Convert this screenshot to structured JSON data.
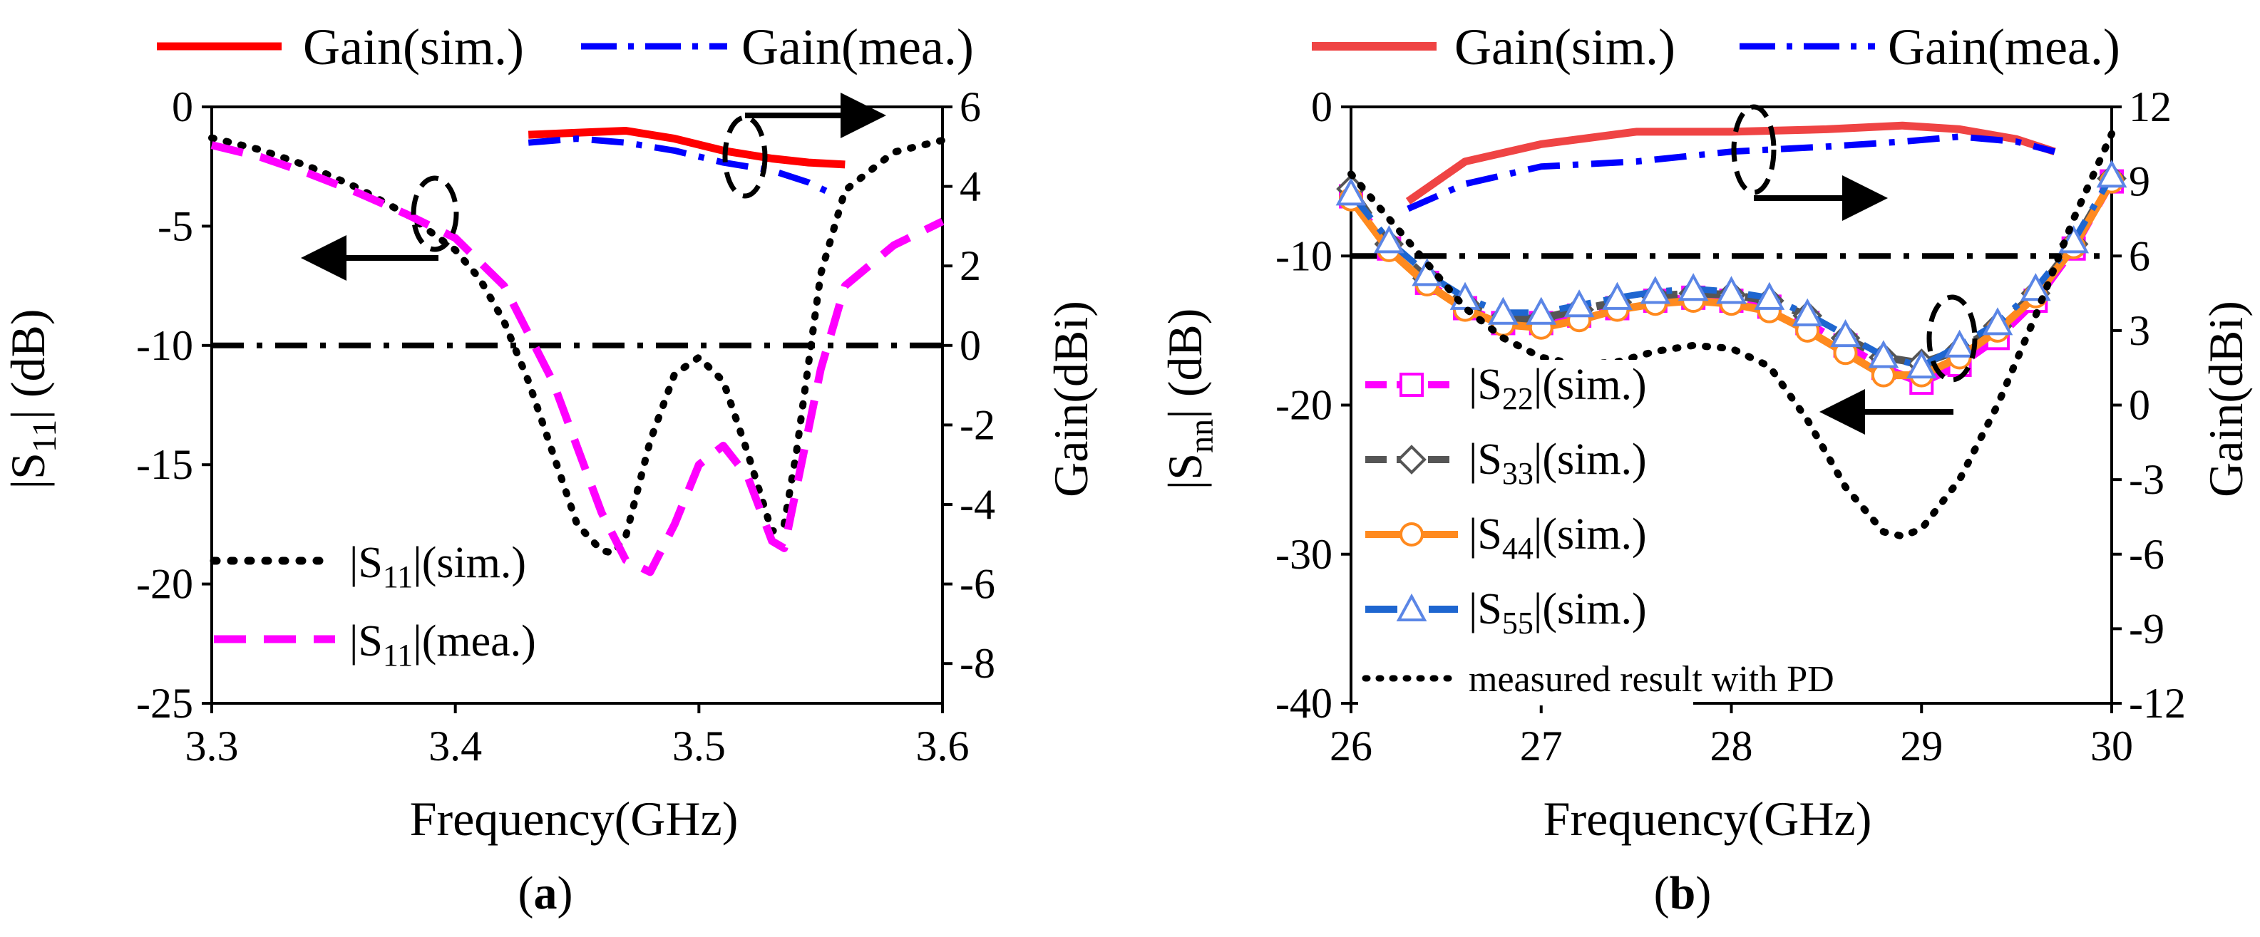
{
  "chart_data": [
    {
      "panel": "a",
      "type": "line",
      "panel_label": "(a)",
      "xlabel": "Frequency(GHz)",
      "ylabel_left": "|S11| (dB)",
      "ylabel_right": "Gain(dBi)",
      "xlim": [
        3.3,
        3.6
      ],
      "ylim_left": [
        -25,
        0
      ],
      "ylim_right": [
        -9,
        6
      ],
      "xticks": [
        "3.3",
        "3.4",
        "3.5",
        "3.6"
      ],
      "yticks_left": [
        "0",
        "-5",
        "-10",
        "-15",
        "-20",
        "-25"
      ],
      "yticks_right": [
        "6",
        "4",
        "2",
        "0",
        "-2",
        "-4",
        "-6",
        "-8"
      ],
      "reference_line": -10,
      "series": [
        {
          "name": "|S11|(sim.)",
          "label_main": "|S",
          "label_sub": "11",
          "label_tail": "|(sim.)",
          "axis": "left",
          "color": "#000000",
          "style": "dotted",
          "x": [
            3.3,
            3.32,
            3.34,
            3.36,
            3.38,
            3.4,
            3.41,
            3.42,
            3.43,
            3.44,
            3.45,
            3.46,
            3.465,
            3.47,
            3.48,
            3.49,
            3.5,
            3.51,
            3.52,
            3.53,
            3.535,
            3.54,
            3.55,
            3.56,
            3.58,
            3.6
          ],
          "y": [
            -1.3,
            -1.8,
            -2.5,
            -3.4,
            -4.5,
            -6.0,
            -7.2,
            -9.0,
            -11.5,
            -14.5,
            -17.5,
            -18.6,
            -18.7,
            -18.0,
            -14.0,
            -11.2,
            -10.5,
            -11.5,
            -14.5,
            -17.8,
            -17.5,
            -14.5,
            -7.0,
            -3.5,
            -1.9,
            -1.4
          ]
        },
        {
          "name": "|S11|(mea.)",
          "label_main": "|S",
          "label_sub": "11",
          "label_tail": "|(mea.)",
          "axis": "left",
          "color": "#ff00ff",
          "style": "dashed",
          "x": [
            3.3,
            3.32,
            3.34,
            3.36,
            3.38,
            3.4,
            3.42,
            3.44,
            3.46,
            3.47,
            3.48,
            3.49,
            3.5,
            3.51,
            3.52,
            3.53,
            3.535,
            3.54,
            3.55,
            3.56,
            3.58,
            3.6
          ],
          "y": [
            -1.6,
            -2.1,
            -2.8,
            -3.6,
            -4.5,
            -5.5,
            -7.5,
            -11.5,
            -17.0,
            -19.0,
            -19.5,
            -17.5,
            -15.0,
            -14.2,
            -15.5,
            -18.2,
            -18.5,
            -16.0,
            -11.0,
            -7.5,
            -5.8,
            -4.8
          ]
        },
        {
          "name": "Gain(sim.)",
          "axis": "right",
          "color": "#ff0000",
          "style": "solid",
          "x": [
            3.43,
            3.45,
            3.47,
            3.49,
            3.51,
            3.53,
            3.545,
            3.56
          ],
          "y": [
            5.3,
            5.35,
            5.4,
            5.2,
            4.9,
            4.7,
            4.6,
            4.55
          ]
        },
        {
          "name": "Gain(mea.)",
          "axis": "right",
          "color": "#0000ff",
          "style": "dashdot",
          "x": [
            3.43,
            3.45,
            3.47,
            3.49,
            3.51,
            3.53,
            3.545,
            3.555
          ],
          "y": [
            5.1,
            5.2,
            5.1,
            4.9,
            4.6,
            4.4,
            4.1,
            3.8
          ]
        }
      ]
    },
    {
      "panel": "b",
      "type": "line",
      "panel_label": "(b)",
      "xlabel": "Frequency(GHz)",
      "ylabel_left": "|Snn| (dB)",
      "ylabel_right": "Gain(dBi)",
      "xlim": [
        26,
        30
      ],
      "ylim_left": [
        -40,
        0
      ],
      "ylim_right": [
        -12,
        12
      ],
      "xticks": [
        "26",
        "27",
        "28",
        "29",
        "30"
      ],
      "yticks_left": [
        "0",
        "-10",
        "-20",
        "-30",
        "-40"
      ],
      "yticks_right": [
        "12",
        "9",
        "6",
        "3",
        "0",
        "-3",
        "-6",
        "-9",
        "-12"
      ],
      "reference_line": -10,
      "series": [
        {
          "name": "Gain(sim.)",
          "axis": "right",
          "color": "#ef4444",
          "style": "solid",
          "x": [
            26.3,
            26.6,
            27.0,
            27.5,
            28.0,
            28.5,
            28.9,
            29.2,
            29.5,
            29.7
          ],
          "y": [
            8.2,
            9.8,
            10.5,
            11.0,
            11.0,
            11.1,
            11.25,
            11.1,
            10.7,
            10.2
          ]
        },
        {
          "name": "Gain(mea.)",
          "axis": "right",
          "color": "#0000ff",
          "style": "dashdot",
          "x": [
            26.3,
            26.6,
            27.0,
            27.5,
            28.0,
            28.5,
            28.9,
            29.2,
            29.5,
            29.7
          ],
          "y": [
            7.9,
            8.9,
            9.6,
            9.8,
            10.2,
            10.4,
            10.6,
            10.8,
            10.6,
            10.2
          ]
        },
        {
          "name": "|S22|(sim.)",
          "label_main": "|S",
          "label_sub": "22",
          "label_tail": "|(sim.)",
          "axis": "left",
          "color": "#ff00ff",
          "style": "dashed",
          "marker": "square",
          "x": [
            26.0,
            26.2,
            26.4,
            26.6,
            26.8,
            27.0,
            27.2,
            27.4,
            27.6,
            27.8,
            28.0,
            28.2,
            28.4,
            28.6,
            28.8,
            29.0,
            29.2,
            29.4,
            29.6,
            29.8,
            30.0
          ],
          "y": [
            -6.0,
            -9.5,
            -11.8,
            -13.5,
            -14.5,
            -14.5,
            -14.0,
            -13.5,
            -13.0,
            -12.8,
            -13.0,
            -13.4,
            -14.5,
            -16.0,
            -17.5,
            -18.5,
            -17.3,
            -15.5,
            -13.0,
            -9.5,
            -5.0
          ]
        },
        {
          "name": "|S33|(sim.)",
          "label_main": "|S",
          "label_sub": "33",
          "label_tail": "|(sim.)",
          "axis": "left",
          "color": "#555555",
          "style": "dashed",
          "marker": "diamond",
          "x": [
            26.0,
            26.2,
            26.4,
            26.6,
            26.8,
            27.0,
            27.2,
            27.4,
            27.6,
            27.8,
            28.0,
            28.2,
            28.4,
            28.6,
            28.8,
            29.0,
            29.2,
            29.4,
            29.6,
            29.8,
            30.0
          ],
          "y": [
            -5.5,
            -9.2,
            -11.5,
            -13.2,
            -14.2,
            -14.2,
            -13.6,
            -13.1,
            -12.7,
            -12.5,
            -12.6,
            -13.0,
            -14.0,
            -15.5,
            -16.8,
            -17.2,
            -16.3,
            -14.7,
            -12.5,
            -9.2,
            -4.8
          ]
        },
        {
          "name": "|S44|(sim.)",
          "label_main": "|S",
          "label_sub": "44",
          "label_tail": "|(sim.)",
          "axis": "left",
          "color": "#ff8a1f",
          "style": "solid",
          "marker": "circle",
          "x": [
            26.0,
            26.2,
            26.4,
            26.6,
            26.8,
            27.0,
            27.2,
            27.4,
            27.6,
            27.8,
            28.0,
            28.2,
            28.4,
            28.6,
            28.8,
            29.0,
            29.2,
            29.4,
            29.6,
            29.8,
            30.0
          ],
          "y": [
            -6.2,
            -9.6,
            -11.9,
            -13.6,
            -14.6,
            -14.8,
            -14.3,
            -13.6,
            -13.2,
            -13.0,
            -13.2,
            -13.7,
            -15.0,
            -16.5,
            -18.0,
            -18.0,
            -16.8,
            -15.0,
            -12.7,
            -9.4,
            -5.0
          ]
        },
        {
          "name": "|S55|(sim.)",
          "label_main": "|S",
          "label_sub": "55",
          "label_tail": "|(sim.)",
          "axis": "left",
          "color": "#1e66d0",
          "marker_color": "#5b86e6",
          "style": "dashdot",
          "marker": "triangle",
          "x": [
            26.0,
            26.2,
            26.4,
            26.6,
            26.8,
            27.0,
            27.2,
            27.4,
            27.6,
            27.8,
            28.0,
            28.2,
            28.4,
            28.6,
            28.8,
            29.0,
            29.2,
            29.4,
            29.6,
            29.8,
            30.0
          ],
          "y": [
            -5.8,
            -9.0,
            -11.2,
            -12.8,
            -13.8,
            -13.8,
            -13.3,
            -12.8,
            -12.4,
            -12.2,
            -12.4,
            -12.8,
            -13.9,
            -15.3,
            -16.7,
            -17.4,
            -16.0,
            -14.5,
            -12.2,
            -9.0,
            -4.6
          ]
        },
        {
          "name": "measured result with PD",
          "axis": "left",
          "color": "#000000",
          "style": "dotted",
          "x": [
            26.0,
            26.2,
            26.4,
            26.6,
            26.8,
            27.0,
            27.2,
            27.4,
            27.6,
            27.8,
            28.0,
            28.2,
            28.4,
            28.6,
            28.8,
            28.9,
            29.0,
            29.2,
            29.4,
            29.6,
            29.8,
            30.0
          ],
          "y": [
            -4.5,
            -7.5,
            -10.5,
            -13.5,
            -15.5,
            -16.8,
            -17.3,
            -17.1,
            -16.4,
            -16.0,
            -16.2,
            -17.4,
            -21.0,
            -25.5,
            -28.5,
            -28.8,
            -28.3,
            -25.0,
            -20.0,
            -14.0,
            -7.5,
            -1.8
          ]
        }
      ]
    }
  ],
  "colors": {
    "background": "#ffffff",
    "axis": "#000000"
  }
}
